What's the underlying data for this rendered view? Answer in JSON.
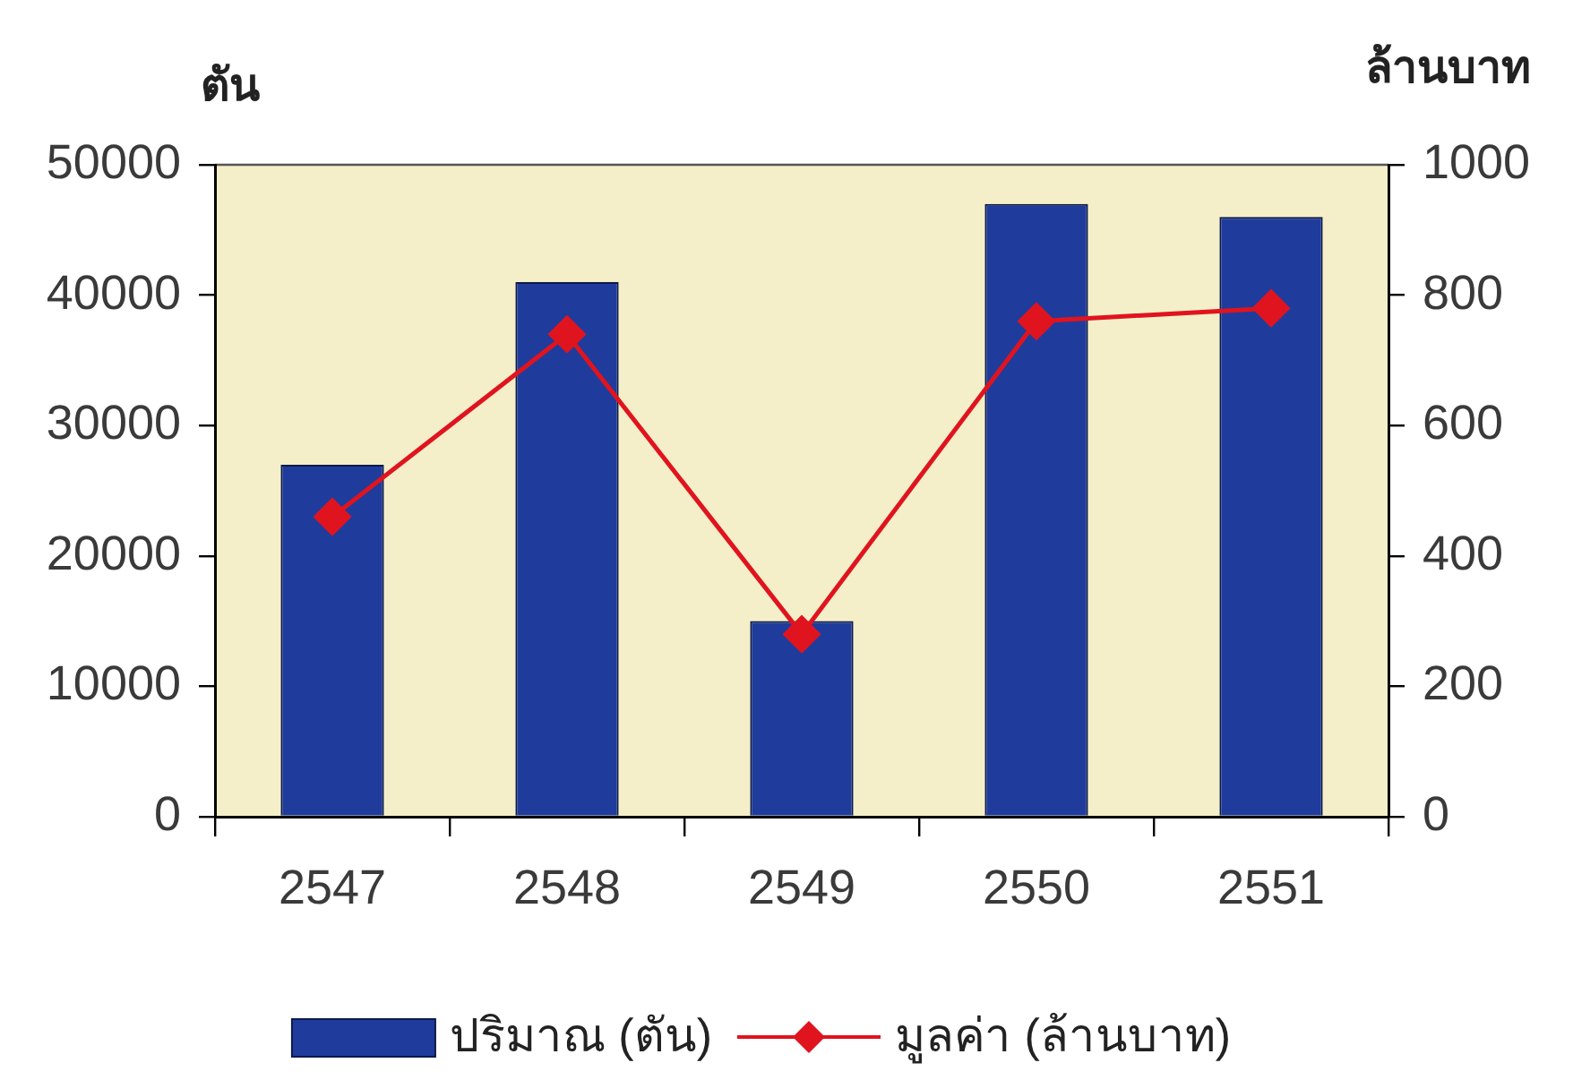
{
  "chart_data": {
    "type": "bar",
    "ylabel": "ตัน",
    "y2label": "ล้านบาท",
    "categories": [
      "2547",
      "2548",
      "2549",
      "2550",
      "2551"
    ],
    "series": [
      {
        "name": "ปริมาณ (ตัน)",
        "type": "bar",
        "color": "#1f3c9c",
        "values": [
          27000,
          41000,
          15000,
          47000,
          46000
        ]
      },
      {
        "name": "มูลค่า (ล้านบาท)",
        "type": "line",
        "axis": "y2",
        "color": "#e0141e",
        "values": [
          460,
          740,
          280,
          760,
          780
        ]
      }
    ],
    "ylim": [
      0,
      50000
    ],
    "yticks": [
      0,
      10000,
      20000,
      30000,
      40000,
      50000
    ],
    "y2lim": [
      0,
      1000
    ],
    "y2ticks": [
      0,
      200,
      400,
      600,
      800,
      1000
    ],
    "legend": "bottom",
    "grid": false,
    "marker": "diamond",
    "line_style": "solid"
  }
}
